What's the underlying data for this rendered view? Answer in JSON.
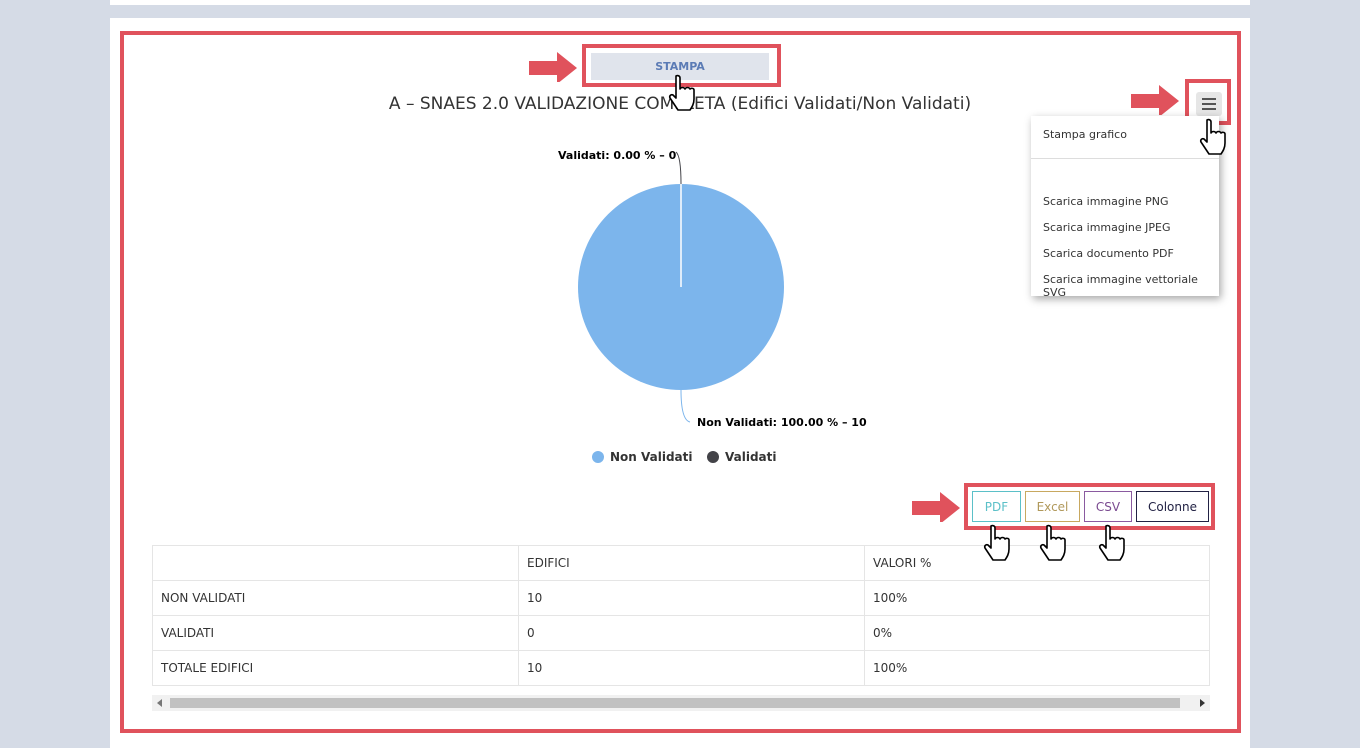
{
  "print_button": "STAMPA",
  "chart_title": "A – SNAES 2.0 VALIDAZIONE COMPLETA (Edifici Validati/Non Validati)",
  "menu": {
    "items": [
      "Stampa grafico",
      "Scarica immagine PNG",
      "Scarica immagine JPEG",
      "Scarica documento PDF",
      "Scarica immagine vettoriale SVG"
    ]
  },
  "chart_data": {
    "type": "pie",
    "title": "A – SNAES 2.0 VALIDAZIONE COMPLETA (Edifici Validati/Non Validati)",
    "slices": [
      {
        "name": "Non Validati",
        "value": 10,
        "percent": 100.0,
        "color": "#7cb5ec",
        "label": "Non Validati: 100.00 % – 10"
      },
      {
        "name": "Validati",
        "value": 0,
        "percent": 0.0,
        "color": "#434348",
        "label": "Validati: 0.00 % – 0"
      }
    ],
    "legend": "bottom"
  },
  "export": {
    "pdf": "PDF",
    "excel": "Excel",
    "csv": "CSV",
    "columns": "Colonne"
  },
  "table": {
    "headers": [
      "",
      "EDIFICI",
      "VALORI %"
    ],
    "rows": [
      [
        "NON VALIDATI",
        "10",
        "100%"
      ],
      [
        "VALIDATI",
        "0",
        "0%"
      ],
      [
        "TOTALE EDIFICI",
        "10",
        "100%"
      ]
    ]
  },
  "colors": {
    "highlight": "#e0525c",
    "pdf": "#5bc0c8",
    "excel": "#c8a860",
    "csv": "#8a5aa0",
    "columns": "#222244"
  }
}
